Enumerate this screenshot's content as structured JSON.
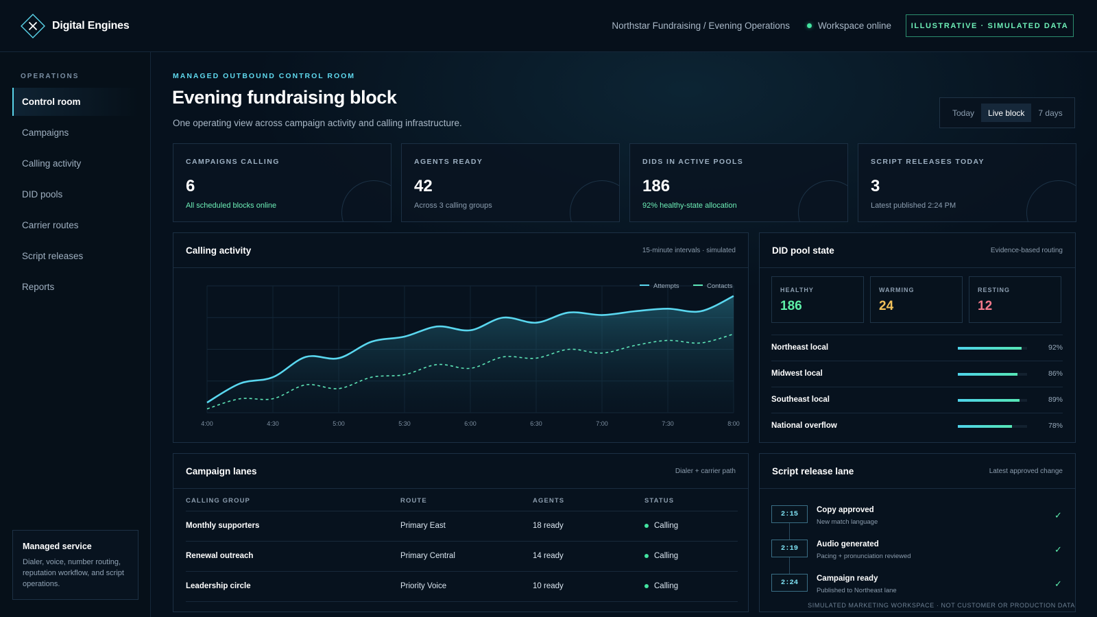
{
  "brand": {
    "name": "Digital Engines",
    "icon": "x-diamond-icon"
  },
  "topbar": {
    "breadcrumb": "Northstar Fundraising / Evening Operations",
    "workspace_status": "Workspace online",
    "badge": "ILLUSTRATIVE · SIMULATED DATA"
  },
  "sidebar": {
    "heading": "OPERATIONS",
    "items": [
      {
        "label": "Control room",
        "active": true
      },
      {
        "label": "Campaigns"
      },
      {
        "label": "Calling activity"
      },
      {
        "label": "DID pools"
      },
      {
        "label": "Carrier routes"
      },
      {
        "label": "Script releases"
      },
      {
        "label": "Reports"
      }
    ],
    "service_card": {
      "title": "Managed service",
      "description": "Dialer, voice, number routing, reputation workflow, and script operations."
    }
  },
  "header": {
    "eyebrow": "MANAGED OUTBOUND CONTROL ROOM",
    "title": "Evening fundraising block",
    "subtitle": "One operating view across campaign activity and calling infrastructure.",
    "range_options": [
      "Today",
      "Live block",
      "7 days"
    ],
    "range_selected": "Live block"
  },
  "kpis": [
    {
      "label": "CAMPAIGNS CALLING",
      "value": "6",
      "note": "All scheduled blocks online",
      "note_tone": "good"
    },
    {
      "label": "AGENTS READY",
      "value": "42",
      "note": "Across 3 calling groups",
      "note_tone": "muted"
    },
    {
      "label": "DIDS IN ACTIVE POOLS",
      "value": "186",
      "note": "92% healthy-state allocation",
      "note_tone": "good"
    },
    {
      "label": "SCRIPT RELEASES TODAY",
      "value": "3",
      "note": "Latest published 2:24 PM",
      "note_tone": "muted"
    }
  ],
  "calling_activity": {
    "title": "Calling activity",
    "meta": "15-minute intervals · simulated"
  },
  "chart_data": {
    "type": "line",
    "x": [
      "4:00",
      "4:15",
      "4:30",
      "4:45",
      "5:00",
      "5:15",
      "5:30",
      "5:45",
      "6:00",
      "6:15",
      "6:30",
      "6:45",
      "7:00",
      "7:15",
      "7:30",
      "7:45",
      "8:00"
    ],
    "x_ticks": [
      "4:00",
      "4:30",
      "5:00",
      "5:30",
      "6:00",
      "6:30",
      "7:00",
      "7:30",
      "8:00"
    ],
    "series": [
      {
        "name": "Attempts",
        "style": "solid-area",
        "color": "#5ad7ef",
        "values": [
          8,
          23,
          28,
          44,
          43,
          56,
          60,
          68,
          65,
          75,
          71,
          79,
          77,
          80,
          82,
          80,
          92
        ]
      },
      {
        "name": "Contacts",
        "style": "dashed",
        "color": "#5ee6b8",
        "values": [
          3,
          11,
          11,
          22,
          19,
          28,
          30,
          38,
          35,
          44,
          43,
          50,
          47,
          53,
          57,
          55,
          62
        ]
      }
    ],
    "ylim": [
      0,
      100
    ],
    "grid": true,
    "legend_position": "top-right"
  },
  "did_pool": {
    "title": "DID pool state",
    "meta": "Evidence-based routing",
    "states": [
      {
        "label": "HEALTHY",
        "value": "186",
        "color": "#5ef0a8"
      },
      {
        "label": "WARMING",
        "value": "24",
        "color": "#f2c15a"
      },
      {
        "label": "RESTING",
        "value": "12",
        "color": "#f47a8c"
      }
    ],
    "pools": [
      {
        "name": "Northeast local",
        "percent": "92%",
        "fill": 0.92
      },
      {
        "name": "Midwest local",
        "percent": "86%",
        "fill": 0.86
      },
      {
        "name": "Southeast local",
        "percent": "89%",
        "fill": 0.89
      },
      {
        "name": "National overflow",
        "percent": "78%",
        "fill": 0.78
      }
    ]
  },
  "campaign_lanes": {
    "title": "Campaign lanes",
    "meta": "Dialer + carrier path",
    "columns": [
      "CALLING GROUP",
      "ROUTE",
      "AGENTS",
      "STATUS"
    ],
    "rows": [
      {
        "group": "Monthly supporters",
        "route": "Primary East",
        "agents": "18 ready",
        "status": "Calling"
      },
      {
        "group": "Renewal outreach",
        "route": "Primary Central",
        "agents": "14 ready",
        "status": "Calling"
      },
      {
        "group": "Leadership circle",
        "route": "Priority Voice",
        "agents": "10 ready",
        "status": "Calling"
      }
    ]
  },
  "script_release": {
    "title": "Script release lane",
    "meta": "Latest approved change",
    "steps": [
      {
        "time": "2:15",
        "title": "Copy approved",
        "sub": "New match language",
        "done": "✓"
      },
      {
        "time": "2:19",
        "title": "Audio generated",
        "sub": "Pacing + pronunciation reviewed",
        "done": "✓"
      },
      {
        "time": "2:24",
        "title": "Campaign ready",
        "sub": "Published to Northeast lane",
        "done": "✓"
      }
    ]
  },
  "footer": {
    "note": "SIMULATED MARKETING WORKSPACE · NOT CUSTOMER OR PRODUCTION DATA"
  }
}
